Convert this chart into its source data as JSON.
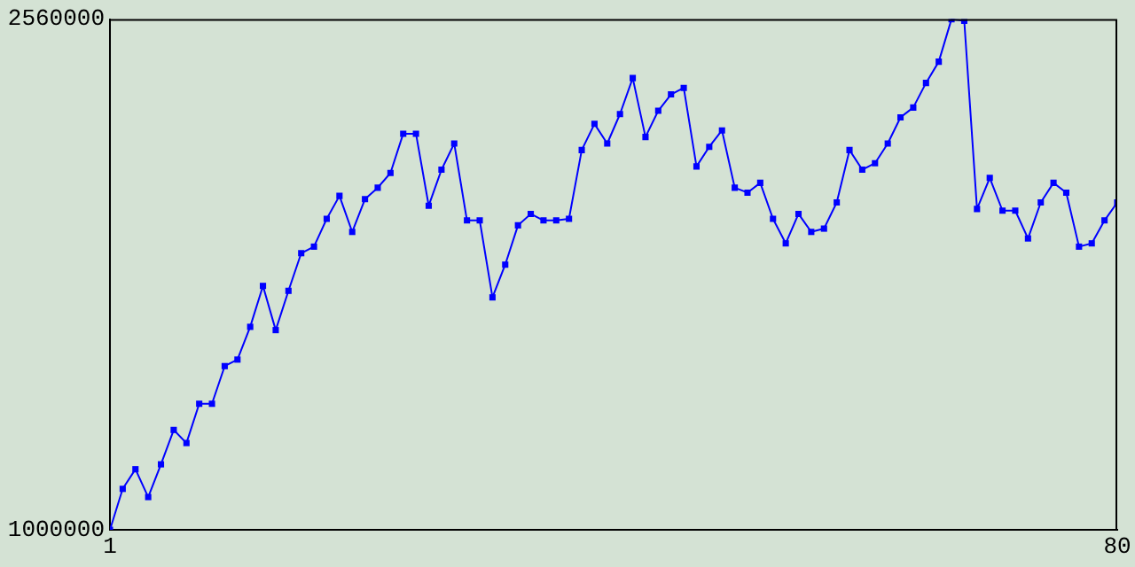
{
  "chart_data": {
    "type": "line",
    "x": [
      1,
      2,
      3,
      4,
      5,
      6,
      7,
      8,
      9,
      10,
      11,
      12,
      13,
      14,
      15,
      16,
      17,
      18,
      19,
      20,
      21,
      22,
      23,
      24,
      25,
      26,
      27,
      28,
      29,
      30,
      31,
      32,
      33,
      34,
      35,
      36,
      37,
      38,
      39,
      40,
      41,
      42,
      43,
      44,
      45,
      46,
      47,
      48,
      49,
      50,
      51,
      52,
      53,
      54,
      55,
      56,
      57,
      58,
      59,
      60,
      61,
      62,
      63,
      64,
      65,
      66,
      67,
      68,
      69,
      70,
      71,
      72,
      73,
      74,
      75,
      76,
      77,
      78,
      79,
      80
    ],
    "series": [
      {
        "color": "#0000ff",
        "values": [
          1000000,
          1125000,
          1185000,
          1100000,
          1200000,
          1305000,
          1265000,
          1385000,
          1385000,
          1500000,
          1520000,
          1620000,
          1745000,
          1610000,
          1730000,
          1845000,
          1865000,
          1950000,
          2020000,
          1910000,
          2010000,
          2045000,
          2090000,
          2210000,
          2210000,
          1990000,
          2100000,
          2180000,
          1945000,
          1945000,
          1710000,
          1810000,
          1930000,
          1965000,
          1945000,
          1945000,
          1950000,
          2160000,
          2240000,
          2180000,
          2270000,
          2380000,
          2200000,
          2280000,
          2330000,
          2350000,
          2110000,
          2170000,
          2220000,
          2045000,
          2030000,
          2060000,
          1950000,
          1875000,
          1965000,
          1910000,
          1920000,
          2000000,
          2160000,
          2100000,
          2120000,
          2180000,
          2260000,
          2290000,
          2365000,
          2430000,
          2560000,
          2555000,
          1980000,
          2075000,
          1975000,
          1975000,
          1890000,
          2000000,
          2060000,
          2030000,
          1865000,
          1875000,
          1945000,
          2000000
        ]
      }
    ],
    "xlim": [
      1,
      80
    ],
    "xticks": [
      1,
      80
    ],
    "ylim": [
      1000000,
      2560000
    ],
    "yticks": [
      1000000,
      2560000
    ],
    "grid": false,
    "legend": false,
    "marker": "square",
    "line_style": "solid"
  }
}
